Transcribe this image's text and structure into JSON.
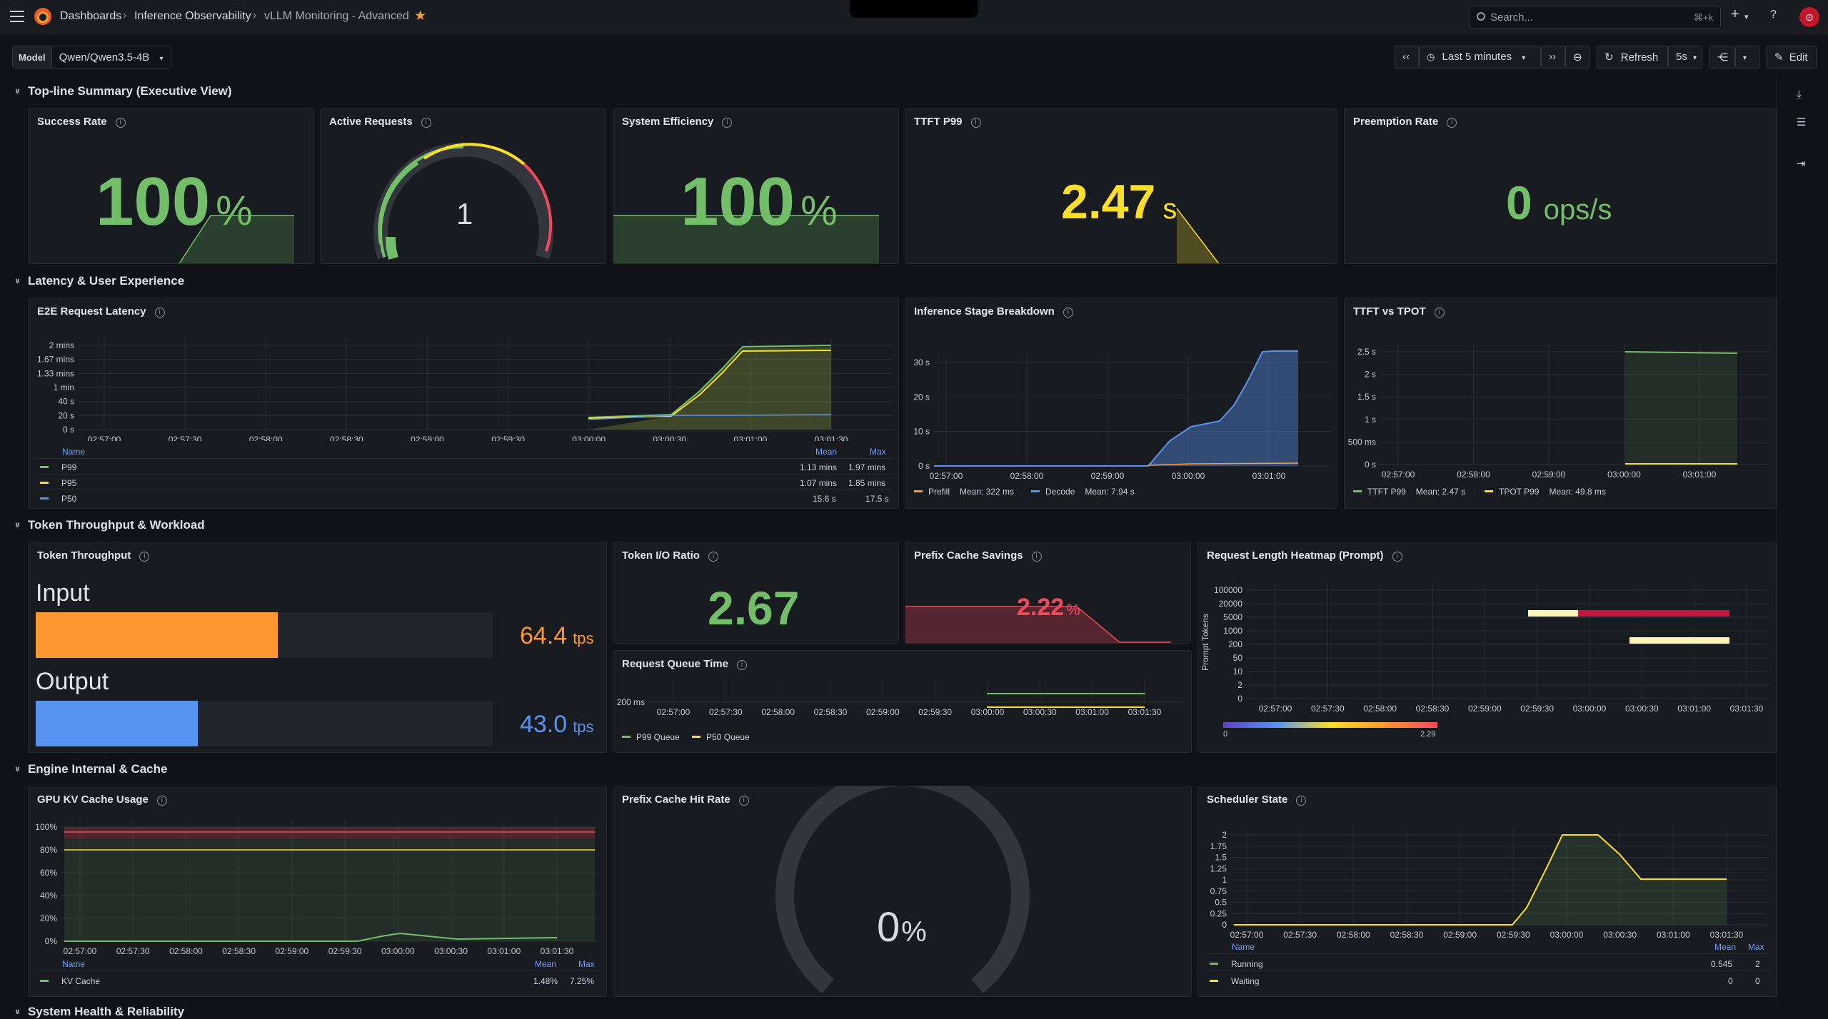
{
  "topbar": {
    "breadcrumb": [
      "Dashboards",
      "Inference Observability",
      "vLLM Monitoring - Advanced"
    ],
    "search_placeholder": "Search...",
    "search_shortcut": "⌘+k",
    "plus_label": "+",
    "avatar_initial": "⊙"
  },
  "toolbar": {
    "variable_label": "Model",
    "variable_value": "Qwen/Qwen3.5-4B",
    "time_range": "Last 5 minutes",
    "refresh_label": "Refresh",
    "refresh_interval": "5s",
    "edit_label": "Edit"
  },
  "sections": [
    "Top-line Summary (Executive View)",
    "Latency & User Experience",
    "Token Throughput & Workload",
    "Engine Internal & Cache",
    "System Health & Reliability"
  ],
  "stats": {
    "success_rate": {
      "title": "Success Rate",
      "value": "100",
      "unit": "%"
    },
    "active_requests": {
      "title": "Active Requests",
      "value": "1"
    },
    "system_efficiency": {
      "title": "System Efficiency",
      "value": "100",
      "unit": "%"
    },
    "ttft_p99": {
      "title": "TTFT P99",
      "value": "2.47",
      "unit": "s"
    },
    "preemption_rate": {
      "title": "Preemption Rate",
      "value": "0",
      "unit": "ops/s"
    },
    "token_io_ratio": {
      "title": "Token I/O Ratio",
      "value": "2.67"
    },
    "prefix_cache_savings": {
      "title": "Prefix Cache Savings",
      "value": "2.22",
      "unit": "%"
    },
    "prefix_cache_hit_rate": {
      "title": "Prefix Cache Hit Rate",
      "value": "0",
      "unit": "%"
    }
  },
  "token_throughput": {
    "title": "Token Throughput",
    "input": {
      "label": "Input",
      "value": "64.4",
      "unit": "tps",
      "fraction": 0.53
    },
    "output": {
      "label": "Output",
      "value": "43.0",
      "unit": "tps",
      "fraction": 0.355
    }
  },
  "charts": {
    "e2e_latency": {
      "title": "E2E Request Latency",
      "y_ticks": [
        "2 mins",
        "1.67 mins",
        "1.33 mins",
        "1 min",
        "40 s",
        "20 s",
        "0 s"
      ],
      "x_ticks": [
        "02:57:00",
        "02:57:30",
        "02:58:00",
        "02:58:30",
        "02:59:00",
        "02:59:30",
        "03:00:00",
        "03:00:30",
        "03:01:00",
        "03:01:30"
      ],
      "legend_headers": {
        "name": "Name",
        "mean": "Mean",
        "max": "Max"
      },
      "legend": [
        {
          "name": "P99",
          "mean": "1.13 mins",
          "max": "1.97 mins"
        },
        {
          "name": "P95",
          "mean": "1.07 mins",
          "max": "1.85 mins"
        },
        {
          "name": "P50",
          "mean": "15.6 s",
          "max": "17.5 s"
        }
      ]
    },
    "stage_breakdown": {
      "title": "Inference Stage Breakdown",
      "y_ticks": [
        "30 s",
        "20 s",
        "10 s",
        "0 s"
      ],
      "x_ticks": [
        "02:57:00",
        "02:58:00",
        "02:59:00",
        "03:00:00",
        "03:01:00"
      ],
      "legend": [
        {
          "name": "Prefill",
          "stat": "Mean: 322 ms"
        },
        {
          "name": "Decode",
          "stat": "Mean: 7.94 s"
        }
      ]
    },
    "ttft_vs_tpot": {
      "title": "TTFT vs TPOT",
      "y_ticks": [
        "2.5 s",
        "2 s",
        "1.5 s",
        "1 s",
        "500 ms",
        "0 s"
      ],
      "x_ticks": [
        "02:57:00",
        "02:58:00",
        "02:59:00",
        "03:00:00",
        "03:01:00"
      ],
      "legend": [
        {
          "name": "TTFT P99",
          "stat": "Mean: 2.47 s"
        },
        {
          "name": "TPOT P99",
          "stat": "Mean: 49.8 ms"
        }
      ]
    },
    "queue_time": {
      "title": "Request Queue Time",
      "y_ticks": [
        "200 ms"
      ],
      "x_ticks": [
        "02:57:00",
        "02:57:30",
        "02:58:00",
        "02:58:30",
        "02:59:00",
        "02:59:30",
        "03:00:00",
        "03:00:30",
        "03:01:00",
        "03:01:30"
      ],
      "legend": [
        {
          "name": "P99 Queue"
        },
        {
          "name": "P50 Queue"
        }
      ]
    },
    "heatmap": {
      "title": "Request Length Heatmap (Prompt)",
      "y_label": "Prompt Tokens",
      "y_ticks": [
        "100000",
        "20000",
        "5000",
        "1000",
        "200",
        "50",
        "10",
        "2",
        "0"
      ],
      "x_ticks": [
        "02:57:00",
        "02:57:30",
        "02:58:00",
        "02:58:30",
        "02:59:00",
        "02:59:30",
        "03:00:00",
        "03:00:30",
        "03:01:00",
        "03:01:30"
      ],
      "scale_min": "0",
      "scale_max": "2.29"
    },
    "kv_cache": {
      "title": "GPU KV Cache Usage",
      "y_ticks": [
        "100%",
        "80%",
        "60%",
        "40%",
        "20%",
        "0%"
      ],
      "x_ticks": [
        "02:57:00",
        "02:57:30",
        "02:58:00",
        "02:58:30",
        "02:59:00",
        "02:59:30",
        "03:00:00",
        "03:00:30",
        "03:01:00",
        "03:01:30"
      ],
      "legend_headers": {
        "name": "Name",
        "mean": "Mean",
        "max": "Max"
      },
      "legend": [
        {
          "name": "KV Cache",
          "mean": "1.48%",
          "max": "7.25%"
        }
      ]
    },
    "scheduler": {
      "title": "Scheduler State",
      "y_ticks": [
        "2",
        "1.75",
        "1.5",
        "1.25",
        "1",
        "0.75",
        "0.5",
        "0.25",
        "0"
      ],
      "x_ticks": [
        "02:57:00",
        "02:57:30",
        "02:58:00",
        "02:58:30",
        "02:59:00",
        "02:59:30",
        "03:00:00",
        "03:00:30",
        "03:01:00",
        "03:01:30"
      ],
      "legend_headers": {
        "name": "Name",
        "mean": "Mean",
        "max": "Max"
      },
      "legend": [
        {
          "name": "Running",
          "mean": "0.545",
          "max": "2"
        },
        {
          "name": "Waiting",
          "mean": "0",
          "max": "0"
        }
      ]
    }
  },
  "colors": {
    "green": "#73bf69",
    "yellow": "#fade2a",
    "orange": "#ff9830",
    "blue": "#5794f2",
    "red": "#f2495c"
  }
}
